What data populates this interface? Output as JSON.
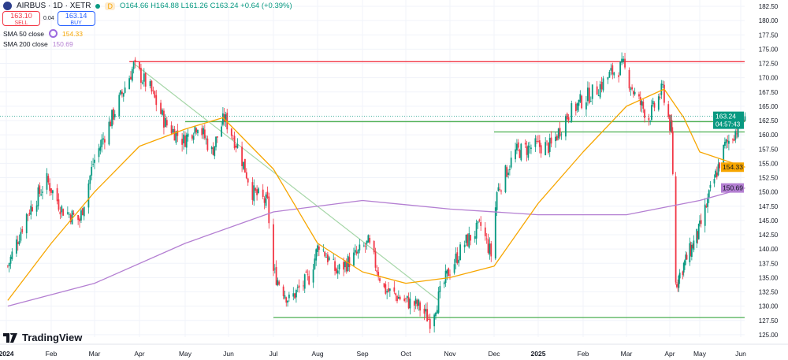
{
  "header": {
    "symbol": "AIRBUS · 1D · XETR",
    "interval_badge": "D",
    "open": "O164.66",
    "high": "H164.88",
    "low": "L161.26",
    "close": "C163.24",
    "change": "+0.64 (+0.39%)"
  },
  "trade": {
    "sell_price": "163.10",
    "sell_label": "SELL",
    "spread": "0.04",
    "buy_price": "163.14",
    "buy_label": "BUY"
  },
  "indicators": [
    {
      "name": "SMA 50 close",
      "value": "154.33",
      "color": "#f7a600"
    },
    {
      "name": "SMA 200 close",
      "value": "150.69",
      "color": "#b47fd2"
    }
  ],
  "branding": "TradingView",
  "chart_data": {
    "type": "candlestick",
    "ylim": [
      125,
      182.5
    ],
    "y_ticks": [
      "182.50",
      "180.00",
      "177.50",
      "175.00",
      "172.50",
      "170.00",
      "167.50",
      "165.00",
      "162.50",
      "160.00",
      "157.50",
      "155.00",
      "152.50",
      "150.00",
      "147.50",
      "145.00",
      "142.50",
      "140.00",
      "137.50",
      "135.00",
      "132.50",
      "130.00",
      "127.50",
      "125.00"
    ],
    "x_ticks": [
      "2024",
      "Feb",
      "Mar",
      "Apr",
      "May",
      "Jun",
      "Jul",
      "Aug",
      "Sep",
      "Oct",
      "Nov",
      "Dec",
      "2025",
      "Feb",
      "Mar",
      "Apr",
      "May",
      "Jun"
    ],
    "last_price": {
      "value": "163.24",
      "countdown": "04:57:43",
      "color": "#089981"
    },
    "sma50_label": {
      "value": "154.33",
      "color": "#f7a600"
    },
    "sma200_label": {
      "value": "150.69",
      "color": "#b47fd2"
    },
    "colors": {
      "up": "#089981",
      "down": "#f23645"
    },
    "close_approx": [
      [
        "2024-01-02",
        137
      ],
      [
        "2024-01-15",
        146
      ],
      [
        "2024-01-29",
        152
      ],
      [
        "2024-02-08",
        147
      ],
      [
        "2024-02-20",
        145
      ],
      [
        "2024-02-29",
        155
      ],
      [
        "2024-03-08",
        160
      ],
      [
        "2024-03-18",
        166
      ],
      [
        "2024-03-28",
        172
      ],
      [
        "2024-04-08",
        168
      ],
      [
        "2024-04-18",
        162
      ],
      [
        "2024-04-30",
        159
      ],
      [
        "2024-05-10",
        162
      ],
      [
        "2024-05-20",
        157
      ],
      [
        "2024-05-29",
        163
      ],
      [
        "2024-06-07",
        158
      ],
      [
        "2024-06-17",
        150
      ],
      [
        "2024-06-27",
        148
      ],
      [
        "2024-07-01",
        136
      ],
      [
        "2024-07-12",
        131
      ],
      [
        "2024-07-26",
        135
      ],
      [
        "2024-08-02",
        141
      ],
      [
        "2024-08-14",
        136
      ],
      [
        "2024-08-28",
        139
      ],
      [
        "2024-09-05",
        141
      ],
      [
        "2024-09-16",
        133
      ],
      [
        "2024-09-30",
        131
      ],
      [
        "2024-10-10",
        130
      ],
      [
        "2024-10-18",
        127.5
      ],
      [
        "2024-10-31",
        136
      ],
      [
        "2024-11-11",
        141
      ],
      [
        "2024-11-22",
        144
      ],
      [
        "2024-11-29",
        139
      ],
      [
        "2024-12-03",
        150
      ],
      [
        "2024-12-16",
        157
      ],
      [
        "2024-12-30",
        158
      ],
      [
        "2025-01-10",
        158
      ],
      [
        "2025-01-20",
        163
      ],
      [
        "2025-01-31",
        166
      ],
      [
        "2025-02-10",
        168
      ],
      [
        "2025-02-20",
        171
      ],
      [
        "2025-02-27",
        172
      ],
      [
        "2025-03-07",
        167
      ],
      [
        "2025-03-17",
        163
      ],
      [
        "2025-03-27",
        168
      ],
      [
        "2025-04-03",
        160
      ],
      [
        "2025-04-07",
        134
      ],
      [
        "2025-04-17",
        138
      ],
      [
        "2025-04-30",
        143
      ],
      [
        "2025-05-09",
        150
      ],
      [
        "2025-05-20",
        158
      ],
      [
        "2025-05-29",
        161
      ],
      [
        "2025-06-04",
        163.24
      ]
    ],
    "sma50": [
      [
        "2024-01-02",
        131
      ],
      [
        "2024-02-01",
        141
      ],
      [
        "2024-03-01",
        150
      ],
      [
        "2024-04-01",
        158
      ],
      [
        "2024-05-01",
        161
      ],
      [
        "2024-05-28",
        163
      ],
      [
        "2024-07-01",
        154
      ],
      [
        "2024-08-01",
        141
      ],
      [
        "2024-09-01",
        136
      ],
      [
        "2024-10-01",
        134
      ],
      [
        "2024-11-01",
        135
      ],
      [
        "2024-12-01",
        137
      ],
      [
        "2025-01-01",
        148
      ],
      [
        "2025-02-01",
        157
      ],
      [
        "2025-03-01",
        165
      ],
      [
        "2025-03-28",
        168
      ],
      [
        "2025-04-15",
        163
      ],
      [
        "2025-05-01",
        157
      ],
      [
        "2025-06-04",
        154.33
      ]
    ],
    "sma200": [
      [
        "2024-01-02",
        130
      ],
      [
        "2024-03-01",
        134
      ],
      [
        "2024-05-01",
        141
      ],
      [
        "2024-07-01",
        146.5
      ],
      [
        "2024-09-01",
        148.5
      ],
      [
        "2024-11-01",
        147
      ],
      [
        "2025-01-01",
        146
      ],
      [
        "2025-03-01",
        146
      ],
      [
        "2025-05-01",
        148.5
      ],
      [
        "2025-06-04",
        150.69
      ]
    ],
    "hlines": [
      {
        "value": 172.8,
        "from": "2024-03-25",
        "color": "#f23645"
      },
      {
        "value": 162.3,
        "from": "2024-05-01",
        "color": "#4caf50"
      },
      {
        "value": 160.5,
        "from": "2024-12-01",
        "color": "#4caf50"
      },
      {
        "value": 128,
        "from": "2024-07-01",
        "color": "#4caf50"
      }
    ],
    "trendline": {
      "from": [
        "2024-03-28",
        172.5
      ],
      "to": [
        "2024-10-24",
        131
      ],
      "color": "#a5d6a7"
    }
  }
}
